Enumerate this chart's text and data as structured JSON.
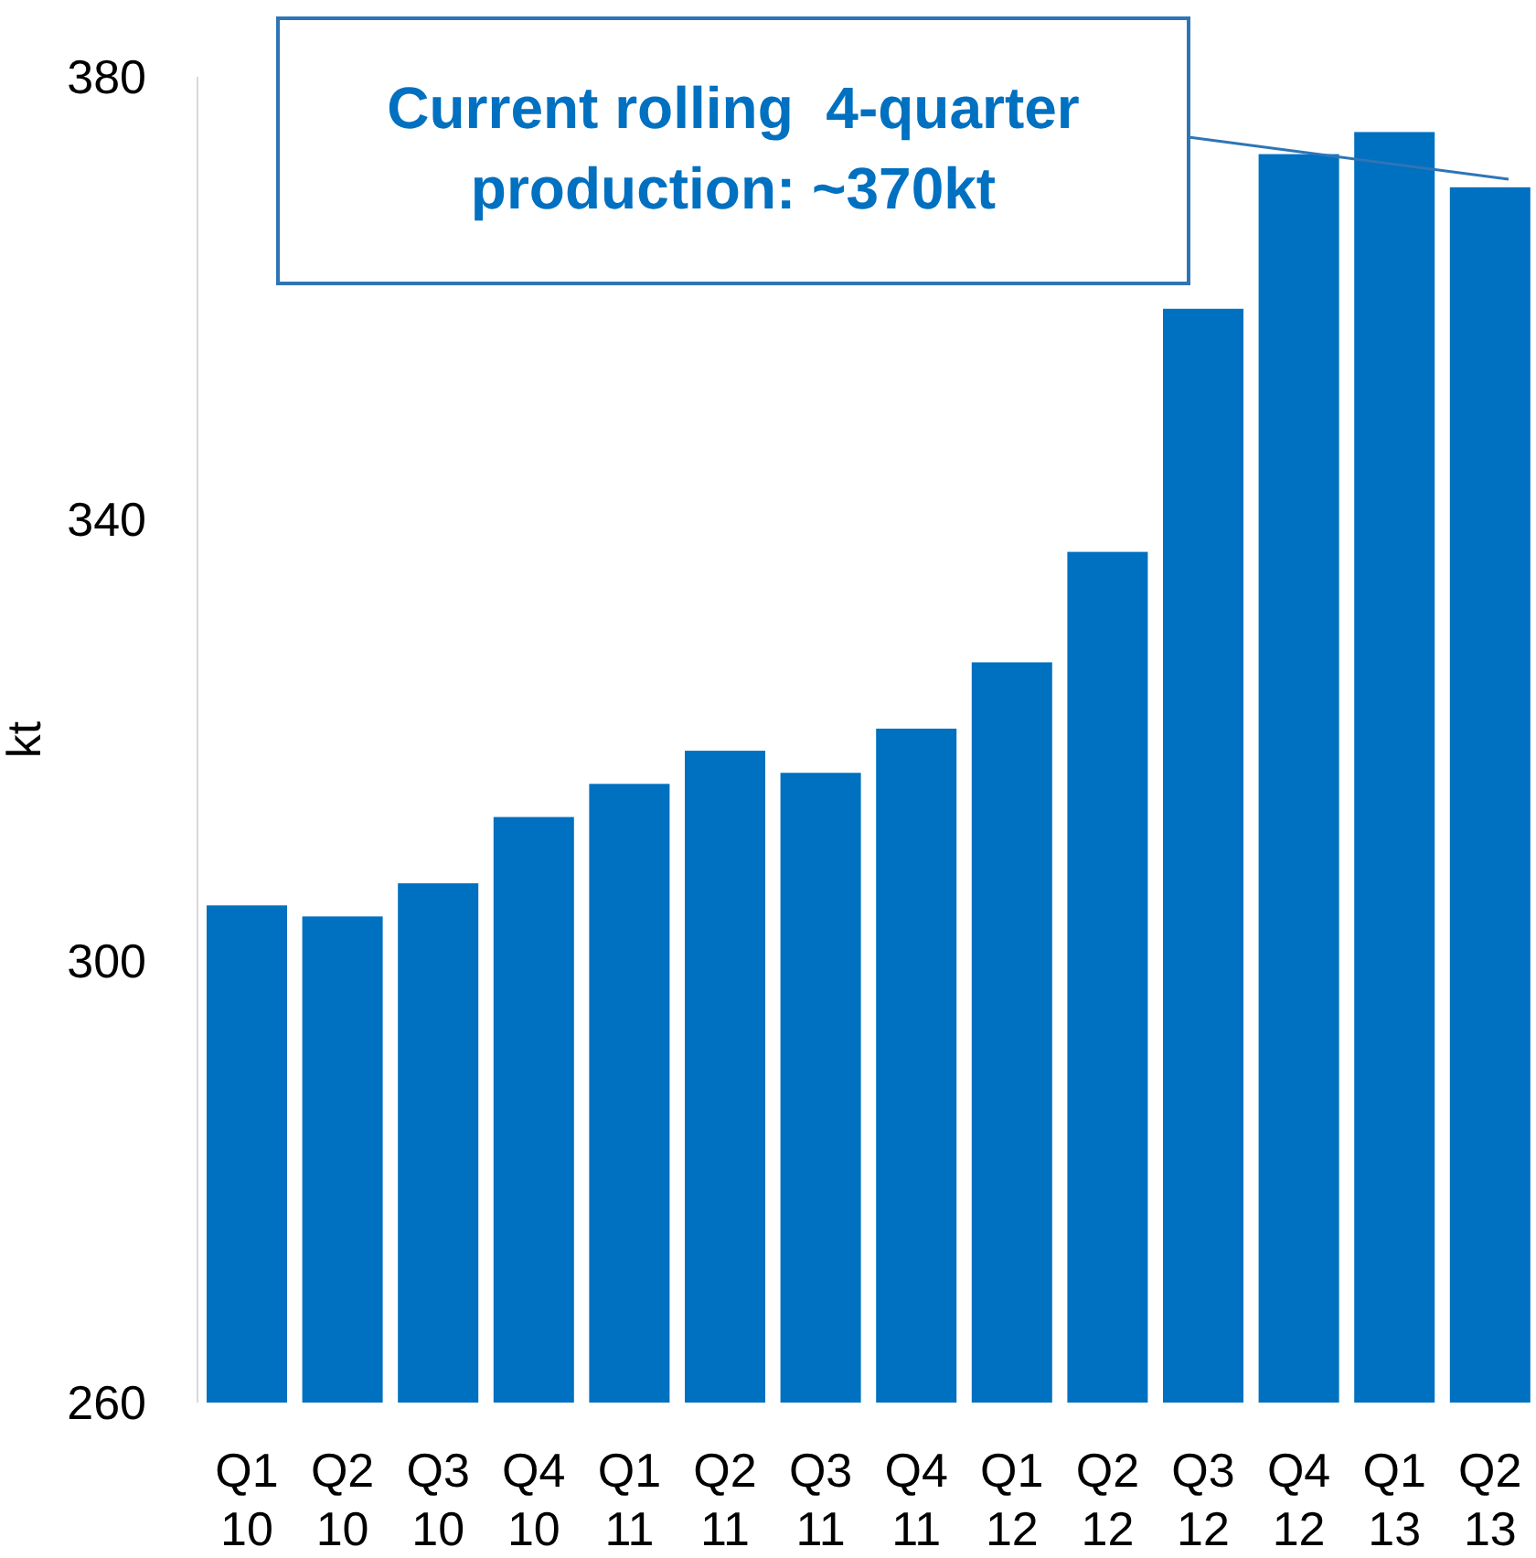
{
  "chart_data": {
    "type": "bar",
    "ylabel": "kt",
    "categories": [
      "Q1\n10",
      "Q2\n10",
      "Q3\n10",
      "Q4\n10",
      "Q1\n11",
      "Q2\n11",
      "Q3\n11",
      "Q4\n11",
      "Q1\n12",
      "Q2\n12",
      "Q3\n12",
      "Q4\n12",
      "Q1\n13",
      "Q2\n13"
    ],
    "values": [
      305,
      304,
      307,
      313,
      316,
      319,
      317,
      321,
      327,
      337,
      359,
      373,
      375,
      370
    ],
    "color": "#0070c0",
    "ylim": [
      260,
      380
    ],
    "yticks": [
      260,
      300,
      340,
      380
    ],
    "grid": false,
    "annotations": [
      "Current rolling  4-quarter\nproduction: ~370kt"
    ]
  }
}
